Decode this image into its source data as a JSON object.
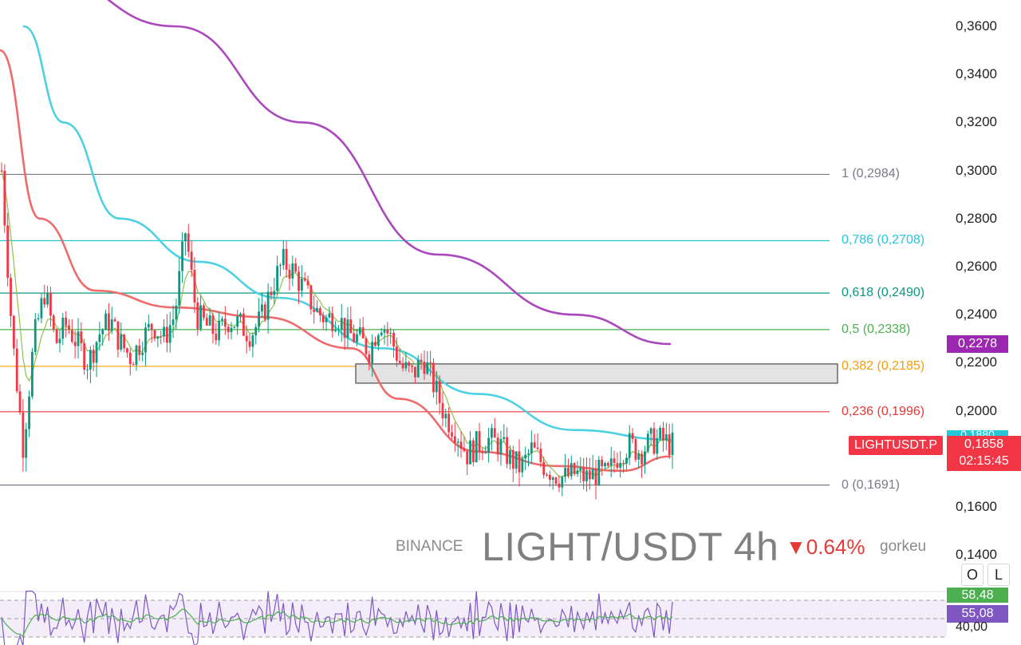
{
  "watermark": {
    "exchange": "BINANCE",
    "title": "LIGHT/USDT 4h",
    "change": "▼0.64%",
    "author": "gorkeu"
  },
  "price_axis": {
    "labels": [
      "0,3600",
      "0,3400",
      "0,3200",
      "0,3000",
      "0,2800",
      "0,2600",
      "0,2400",
      "0,2200",
      "0,2000",
      "0,1600",
      "0,1400"
    ]
  },
  "fib_levels": [
    {
      "label": "1 (0,2984)",
      "value": 0.2984,
      "color": "#787b86"
    },
    {
      "label": "0,786 (0,2708)",
      "value": 0.2708,
      "color": "#26c6da"
    },
    {
      "label": "0,618 (0,2490)",
      "value": 0.249,
      "color": "#089981"
    },
    {
      "label": "0,5 (0,2338)",
      "value": 0.2338,
      "color": "#4caf50"
    },
    {
      "label": "0,382 (0,2185)",
      "value": 0.2185,
      "color": "#f59d0b"
    },
    {
      "label": "0,236 (0,1996)",
      "value": 0.1996,
      "color": "#e53935"
    },
    {
      "label": "0 (0,1691)",
      "value": 0.1691,
      "color": "#787b86"
    }
  ],
  "badges": {
    "ma_purple": "0,2278",
    "ma_cyan": "0,1880",
    "symbol": "LIGHTUSDT.P",
    "price": "0,1858",
    "countdown": "02:15:45",
    "rsi_value": "58,48",
    "rsi_ma": "55,08",
    "rsi_level": "40,00"
  },
  "scale_buttons": {
    "log": "O",
    "lock": "L"
  },
  "colors": {
    "up": "#089981",
    "down": "#f23645",
    "ma_purple": "#ab47bc",
    "ma_cyan": "#4dd0e1",
    "ma_red": "#ef6b6b",
    "ma_green": "#8bc34a",
    "rsi": "#7e57c2"
  },
  "chart_data": {
    "type": "candlestick",
    "symbol": "LIGHT/USDT",
    "timeframe": "4h",
    "y_axis_range": [
      0.14,
      0.365
    ],
    "last_price": 0.1858,
    "zone": {
      "from": 0.2115,
      "to": 0.2195
    },
    "price_path": [
      0.3,
      0.23,
      0.185,
      0.23,
      0.25,
      0.228,
      0.236,
      0.228,
      0.22,
      0.232,
      0.238,
      0.228,
      0.222,
      0.23,
      0.236,
      0.23,
      0.24,
      0.275,
      0.24,
      0.235,
      0.232,
      0.238,
      0.236,
      0.232,
      0.238,
      0.252,
      0.262,
      0.258,
      0.25,
      0.242,
      0.238,
      0.24,
      0.232,
      0.23,
      0.225,
      0.238,
      0.23,
      0.218,
      0.215,
      0.222,
      0.21,
      0.198,
      0.192,
      0.182,
      0.186,
      0.188,
      0.186,
      0.18,
      0.176,
      0.184,
      0.178,
      0.174,
      0.172,
      0.174,
      0.172,
      0.174,
      0.173,
      0.182,
      0.186,
      0.183,
      0.187,
      0.188,
      0.1858
    ],
    "moving_averages": [
      {
        "name": "MA purple",
        "points": [
          [
            0.06,
            0.38
          ],
          [
            0.22,
            0.36
          ],
          [
            0.38,
            0.32
          ],
          [
            0.55,
            0.265
          ],
          [
            0.72,
            0.24
          ],
          [
            0.84,
            0.2278
          ]
        ]
      },
      {
        "name": "MA cyan",
        "points": [
          [
            0.03,
            0.36
          ],
          [
            0.08,
            0.32
          ],
          [
            0.15,
            0.28
          ],
          [
            0.25,
            0.262
          ],
          [
            0.35,
            0.247
          ],
          [
            0.48,
            0.226
          ],
          [
            0.6,
            0.207
          ],
          [
            0.72,
            0.192
          ],
          [
            0.84,
            0.188
          ]
        ]
      },
      {
        "name": "MA red",
        "points": [
          [
            0.0,
            0.35
          ],
          [
            0.05,
            0.28
          ],
          [
            0.12,
            0.25
          ],
          [
            0.22,
            0.243
          ],
          [
            0.33,
            0.239
          ],
          [
            0.44,
            0.226
          ],
          [
            0.5,
            0.205
          ],
          [
            0.6,
            0.183
          ],
          [
            0.7,
            0.177
          ],
          [
            0.78,
            0.175
          ],
          [
            0.84,
            0.181
          ]
        ]
      }
    ],
    "rsi": {
      "upper": 70,
      "lower": 30,
      "last": 58.48,
      "ma": 55.08
    }
  }
}
